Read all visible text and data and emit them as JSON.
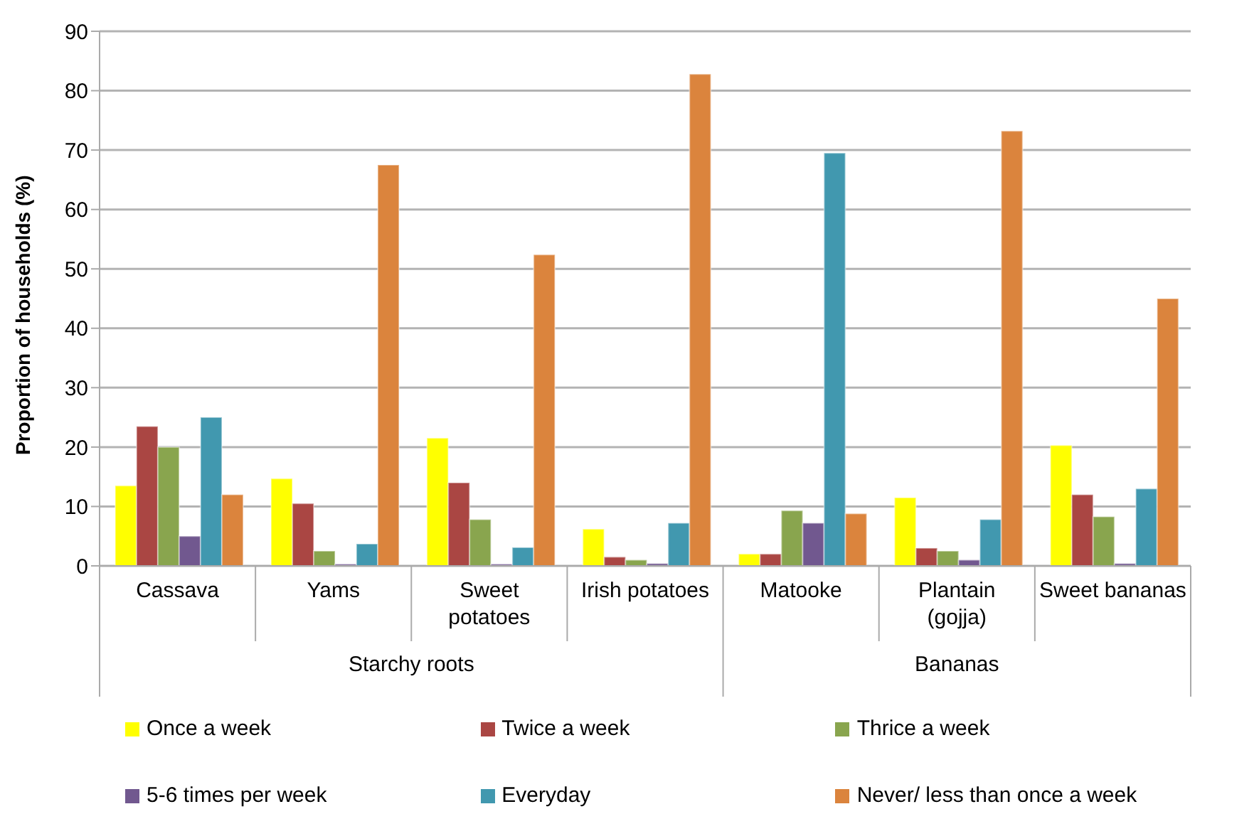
{
  "chart_data": {
    "type": "bar",
    "ylabel": "Proportion of households (%)",
    "categories": [
      "Cassava",
      "Yams",
      "Sweet potatoes",
      "Irish potatoes",
      "Matooke",
      "Plantain (gojja)",
      "Sweet bananas"
    ],
    "annotations": [
      "Starchy roots",
      "Bananas"
    ],
    "series": [
      {
        "name": "Once a week",
        "color": "#ffff00",
        "values": [
          13.5,
          14.7,
          21.5,
          6.2,
          2,
          11.5,
          20.3
        ]
      },
      {
        "name": "Twice a week",
        "color": "#aa4643",
        "values": [
          23.5,
          10.5,
          14,
          1.5,
          2,
          3,
          12
        ]
      },
      {
        "name": "Thrice a week",
        "color": "#89a54e",
        "values": [
          20,
          2.5,
          7.8,
          1,
          9.3,
          2.5,
          8.3
        ]
      },
      {
        "name": "5-6 times per week",
        "color": "#71588f",
        "values": [
          5,
          0.3,
          0.3,
          0.4,
          7.2,
          1,
          0.4
        ]
      },
      {
        "name": "Everyday",
        "color": "#4198af",
        "values": [
          25,
          3.7,
          3.1,
          7.2,
          69.5,
          7.8,
          13
        ]
      },
      {
        "name": "Never/ less than once a week",
        "color": "#db843d",
        "values": [
          12,
          67.5,
          52.4,
          82.8,
          8.8,
          73.2,
          45
        ]
      }
    ],
    "ylim": [
      0,
      90
    ],
    "yticks": [
      0,
      10,
      20,
      30,
      40,
      50,
      60,
      70,
      80,
      90
    ],
    "grid": "y",
    "legend": "bottom"
  }
}
